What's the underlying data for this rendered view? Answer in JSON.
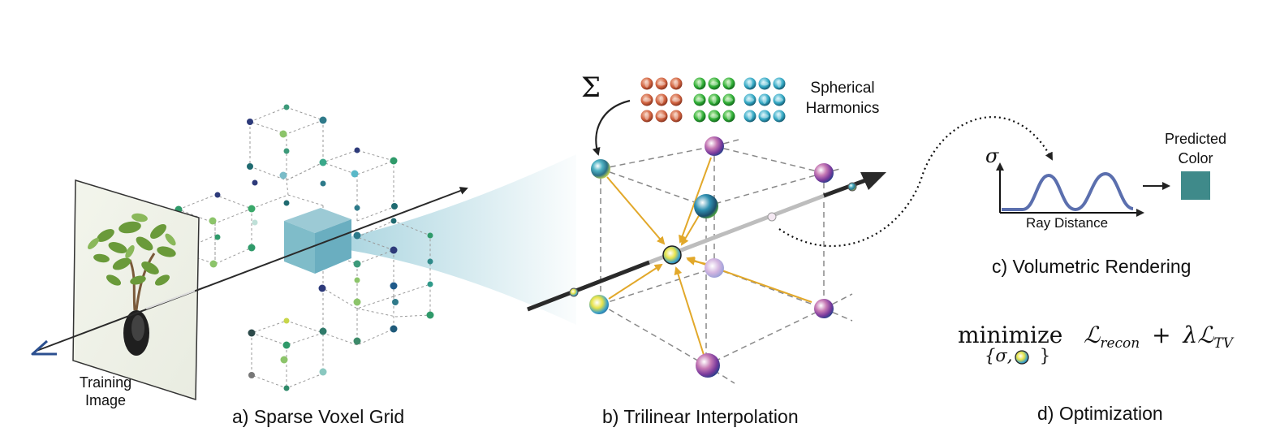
{
  "labels": {
    "training_image": [
      "Training",
      "Image"
    ],
    "sh_label": [
      "Spherical",
      "Harmonics"
    ],
    "predicted_color": [
      "Predicted",
      "Color"
    ],
    "sigma_axis": "σ",
    "ray_distance": "Ray Distance",
    "sum_symbol": "Σ"
  },
  "captions": {
    "a": "a) Sparse Voxel Grid",
    "b": "b) Trilinear Interpolation",
    "c": "c) Volumetric Rendering",
    "d": "d) Optimization"
  },
  "optimization": {
    "word": "minimize",
    "loss_recon": "ℒ",
    "loss_recon_sub": "recon",
    "plus": "+",
    "lambda": "λ",
    "loss_tv": "ℒ",
    "loss_tv_sub": "TV",
    "under_open": "{σ,",
    "under_close": "}"
  },
  "colors": {
    "predicted": "#3f8a8a",
    "curve": "#5b6fae",
    "arrow_yellow": "#e2a82a",
    "ray": "#333333",
    "cube_fill": "#7fbcc9",
    "camera": "#2b4f8f"
  }
}
